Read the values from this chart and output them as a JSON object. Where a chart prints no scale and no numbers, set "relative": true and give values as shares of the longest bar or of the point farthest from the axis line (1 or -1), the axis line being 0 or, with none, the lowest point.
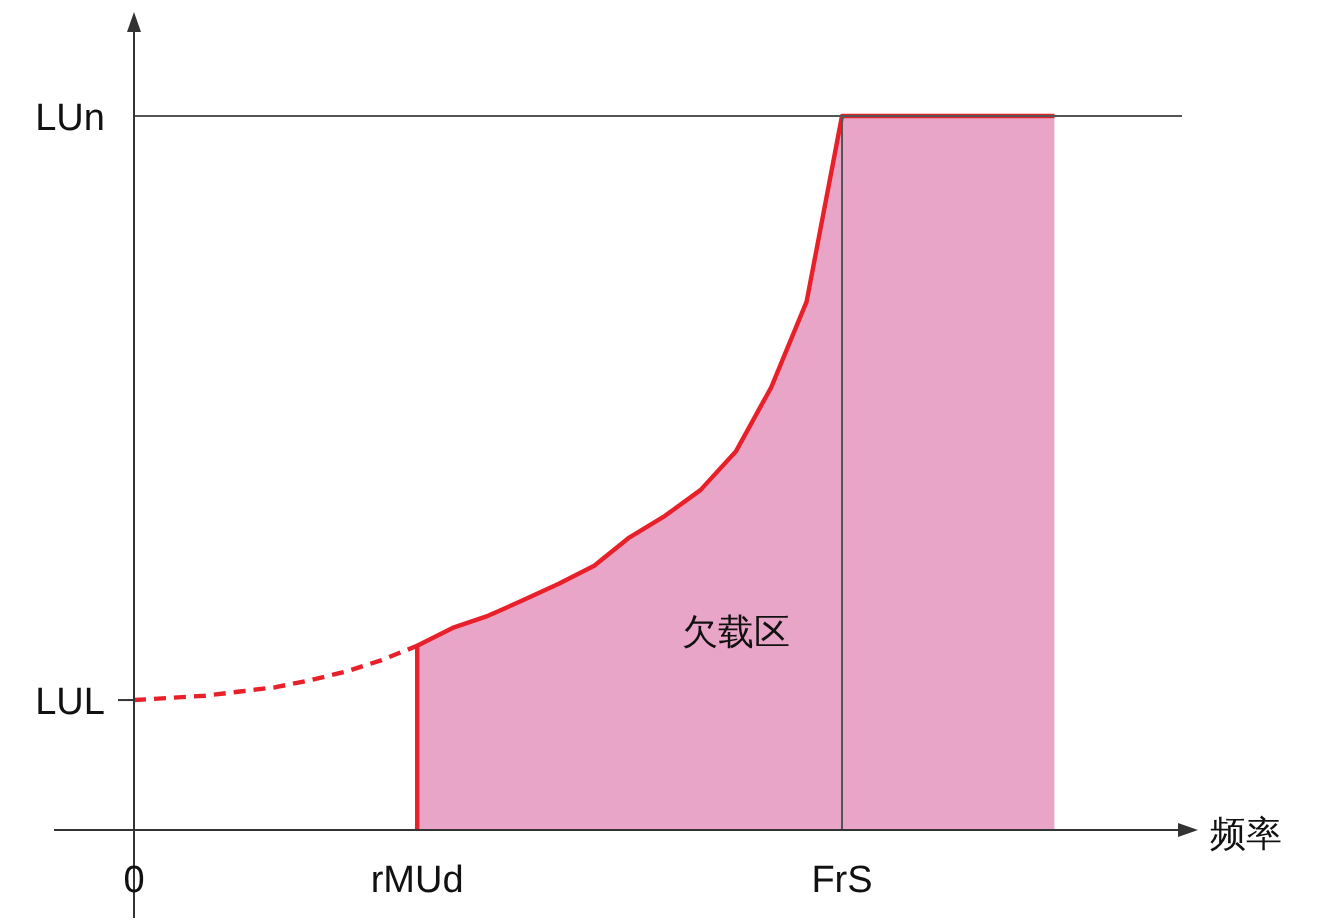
{
  "chart_data": {
    "type": "area",
    "relative": true,
    "xlabel": "频率",
    "categories": [
      "0",
      null,
      null,
      null,
      null,
      null,
      null,
      null,
      "rMUd",
      null,
      null,
      null,
      null,
      null,
      null,
      null,
      null,
      null,
      null,
      null,
      "FrS",
      null,
      null,
      null,
      null,
      null,
      null
    ],
    "ref_lines": [
      {
        "axis": "y",
        "value": 1,
        "label": "LUn",
        "color": "#555555"
      },
      {
        "axis": "x",
        "value": "FrS",
        "color": "#555555"
      }
    ],
    "annotations": [
      "欠载区",
      {
        "text": "LUL",
        "x": "0",
        "y": 0.182
      }
    ],
    "series": [
      {
        "color": "#e8a5c8",
        "values": [
          null,
          null,
          null,
          null,
          null,
          null,
          null,
          null,
          0.258,
          0.283,
          0.3,
          0.322,
          0.345,
          0.37,
          0.41,
          0.44,
          0.476,
          0.53,
          0.62,
          0.74,
          1,
          1,
          1,
          1,
          1,
          1,
          1
        ]
      },
      {
        "type": "line",
        "line_style": "dashed",
        "color": "#e8202a",
        "values": [
          0.182,
          0.185,
          0.188,
          0.194,
          0.2,
          0.21,
          0.222,
          0.238,
          0.258,
          null,
          null,
          null,
          null,
          null,
          null,
          null,
          null,
          null,
          null,
          null,
          null,
          null,
          null,
          null,
          null,
          null,
          null
        ]
      }
    ]
  }
}
